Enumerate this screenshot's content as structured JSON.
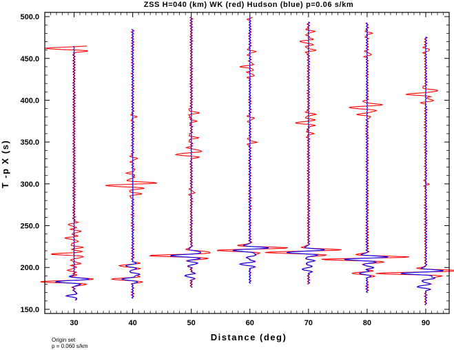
{
  "chart_data": {
    "type": "line",
    "title": "ZSS H=040 (km) WK (red) Hudson (blue) p=0.06 s/km",
    "xlabel": "Distance (deg)",
    "ylabel": "T -p X (s)",
    "xlim": [
      25,
      94
    ],
    "ylim": [
      145,
      505
    ],
    "x_ticks": [
      30,
      40,
      50,
      60,
      70,
      80,
      90
    ],
    "x_tick_labels": [
      "30",
      "40",
      "50",
      "60",
      "70",
      "80",
      "90"
    ],
    "y_ticks": [
      150,
      200,
      250,
      300,
      350,
      400,
      450,
      500
    ],
    "y_tick_labels": [
      "150.0",
      "200.0",
      "250.0",
      "300.0",
      "350.0",
      "400.0",
      "450.0",
      "500.0"
    ],
    "grid": false,
    "legend": "none",
    "colors": {
      "WK": "#ff0000",
      "Hudson": "#0000ff",
      "axes": "#000000"
    },
    "series": [
      {
        "name": "WK",
        "color": "#ff0000"
      },
      {
        "name": "Hudson",
        "color": "#0000ff"
      }
    ],
    "traces": [
      {
        "distance": 30,
        "start": 161,
        "end": 465,
        "hudson": [
          [
            166,
            -1.6
          ],
          [
            183,
            -3.2
          ],
          [
            186,
            2.0
          ]
        ],
        "wk": [
          [
            183,
            -3.4
          ],
          [
            190,
            1.0
          ],
          [
            197,
            -1.5
          ],
          [
            205,
            1.4
          ],
          [
            216,
            -5.0
          ],
          [
            224,
            1.8
          ],
          [
            235,
            -2.0
          ],
          [
            243,
            1.6
          ],
          [
            251,
            -1.4
          ],
          [
            462,
            -6.6
          ]
        ]
      },
      {
        "distance": 40,
        "start": 163,
        "end": 485,
        "hudson": [
          [
            186,
            -2.4
          ],
          [
            192,
            1.5
          ],
          [
            202,
            -1.6
          ]
        ],
        "wk": [
          [
            186,
            -2.4
          ],
          [
            202,
            -1.6
          ],
          [
            288,
            1.8
          ],
          [
            298,
            -5.0
          ],
          [
            301,
            3.0
          ],
          [
            313,
            -1.2
          ],
          [
            330,
            1.0
          ],
          [
            380,
            0.8
          ]
        ]
      },
      {
        "distance": 50,
        "start": 176,
        "end": 500,
        "hudson": [
          [
            190,
            -1.5
          ],
          [
            205,
            1.5
          ],
          [
            214,
            -4.5
          ],
          [
            219,
            1.3
          ]
        ],
        "wk": [
          [
            214,
            -4.5
          ],
          [
            219,
            1.3
          ],
          [
            290,
            0.8
          ],
          [
            335,
            -3.5
          ],
          [
            340,
            1.7
          ],
          [
            355,
            1.4
          ],
          [
            375,
            1.0
          ],
          [
            385,
            1.6
          ]
        ]
      },
      {
        "distance": 60,
        "start": 181,
        "end": 500,
        "hudson": [
          [
            204,
            -2.3
          ],
          [
            215,
            1.5
          ],
          [
            221,
            -3.0
          ],
          [
            223,
            3.5
          ]
        ],
        "wk": [
          [
            221,
            -3.0
          ],
          [
            223,
            3.5
          ],
          [
            350,
            1.3
          ],
          [
            378,
            1.0
          ],
          [
            430,
            1.0
          ],
          [
            440,
            -2.0
          ],
          [
            458,
            1.2
          ],
          [
            500,
            0.8
          ]
        ]
      },
      {
        "distance": 70,
        "start": 180,
        "end": 494,
        "hudson": [
          [
            198,
            -1.5
          ],
          [
            208,
            1.2
          ],
          [
            218,
            -4.2
          ],
          [
            221,
            1.7
          ]
        ],
        "wk": [
          [
            218,
            -4.2
          ],
          [
            221,
            1.7
          ],
          [
            360,
            1.0
          ],
          [
            373,
            -3.0
          ],
          [
            383,
            1.5
          ],
          [
            460,
            1.5
          ],
          [
            470,
            -2.0
          ],
          [
            482,
            1.2
          ]
        ]
      },
      {
        "distance": 80,
        "start": 170,
        "end": 493,
        "hudson": [
          [
            193,
            -1.8
          ],
          [
            200,
            1.5
          ],
          [
            210,
            -4.5
          ],
          [
            212,
            3.4
          ]
        ],
        "wk": [
          [
            193,
            -1.8
          ],
          [
            210,
            -4.5
          ],
          [
            212,
            3.4
          ],
          [
            383,
            -2.0
          ],
          [
            391,
            -3.5
          ],
          [
            395,
            2.0
          ],
          [
            455,
            1.0
          ],
          [
            480,
            1.0
          ]
        ]
      },
      {
        "distance": 90,
        "start": 155,
        "end": 476,
        "hudson": [
          [
            177,
            -2.0
          ],
          [
            187,
            2.0
          ],
          [
            193,
            -4.8
          ],
          [
            196,
            1.8
          ]
        ],
        "wk": [
          [
            193,
            -4.8
          ],
          [
            196,
            1.8
          ],
          [
            300,
            0.6
          ],
          [
            400,
            2.0
          ],
          [
            407,
            -4.0
          ],
          [
            412,
            2.0
          ],
          [
            460,
            1.0
          ]
        ]
      }
    ]
  },
  "footer": {
    "line1": "Origin set",
    "line2": "p = 0.060 s/km"
  }
}
